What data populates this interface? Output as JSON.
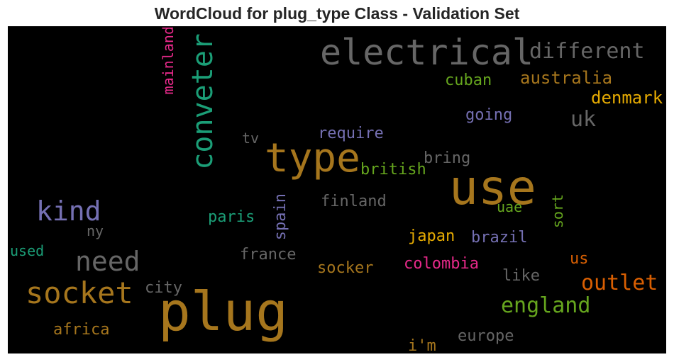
{
  "title": "WordCloud for plug_type Class - Validation Set",
  "colors": {
    "background": "#000000",
    "palette_dark2": [
      "#1b9e77",
      "#d95f02",
      "#7570b3",
      "#e7298a",
      "#66a61e",
      "#e6ab02",
      "#a6761d",
      "#666666"
    ]
  },
  "chart_data": {
    "type": "wordcloud",
    "title": "WordCloud for plug_type Class - Validation Set",
    "words": [
      {
        "text": "plug",
        "weight": 100,
        "color": "#a6761d"
      },
      {
        "text": "use",
        "weight": 88,
        "color": "#a6761d"
      },
      {
        "text": "type",
        "weight": 72,
        "color": "#a6761d"
      },
      {
        "text": "electrical",
        "weight": 66,
        "color": "#666666"
      },
      {
        "text": "socket",
        "weight": 60,
        "color": "#a6761d"
      },
      {
        "text": "conveter",
        "weight": 55,
        "color": "#1b9e77"
      },
      {
        "text": "need",
        "weight": 50,
        "color": "#666666"
      },
      {
        "text": "kind",
        "weight": 48,
        "color": "#7570b3"
      },
      {
        "text": "england",
        "weight": 42,
        "color": "#66a61e"
      },
      {
        "text": "outlet",
        "weight": 42,
        "color": "#d95f02"
      },
      {
        "text": "different",
        "weight": 40,
        "color": "#666666"
      },
      {
        "text": "uk",
        "weight": 40,
        "color": "#666666"
      },
      {
        "text": "australia",
        "weight": 34,
        "color": "#a6761d"
      },
      {
        "text": "denmark",
        "weight": 34,
        "color": "#e6ab02"
      },
      {
        "text": "cuban",
        "weight": 32,
        "color": "#66a61e"
      },
      {
        "text": "going",
        "weight": 32,
        "color": "#7570b3"
      },
      {
        "text": "require",
        "weight": 30,
        "color": "#7570b3"
      },
      {
        "text": "bring",
        "weight": 30,
        "color": "#666666"
      },
      {
        "text": "british",
        "weight": 30,
        "color": "#66a61e"
      },
      {
        "text": "finland",
        "weight": 30,
        "color": "#666666"
      },
      {
        "text": "uae",
        "weight": 28,
        "color": "#66a61e"
      },
      {
        "text": "sort",
        "weight": 28,
        "color": "#66a61e"
      },
      {
        "text": "spain",
        "weight": 30,
        "color": "#7570b3"
      },
      {
        "text": "paris",
        "weight": 30,
        "color": "#1b9e77"
      },
      {
        "text": "japan",
        "weight": 30,
        "color": "#e6ab02"
      },
      {
        "text": "brazil",
        "weight": 30,
        "color": "#7570b3"
      },
      {
        "text": "mainland",
        "weight": 28,
        "color": "#e7298a"
      },
      {
        "text": "tv",
        "weight": 28,
        "color": "#666666"
      },
      {
        "text": "ny",
        "weight": 28,
        "color": "#666666"
      },
      {
        "text": "used",
        "weight": 27,
        "color": "#1b9e77"
      },
      {
        "text": "france",
        "weight": 30,
        "color": "#666666"
      },
      {
        "text": "socker",
        "weight": 30,
        "color": "#a6761d"
      },
      {
        "text": "colombia",
        "weight": 30,
        "color": "#e7298a"
      },
      {
        "text": "us",
        "weight": 30,
        "color": "#d95f02"
      },
      {
        "text": "like",
        "weight": 30,
        "color": "#666666"
      },
      {
        "text": "city",
        "weight": 30,
        "color": "#666666"
      },
      {
        "text": "africa",
        "weight": 30,
        "color": "#a6761d"
      },
      {
        "text": "europe",
        "weight": 30,
        "color": "#666666"
      },
      {
        "text": "i'm",
        "weight": 30,
        "color": "#a6761d"
      }
    ]
  }
}
